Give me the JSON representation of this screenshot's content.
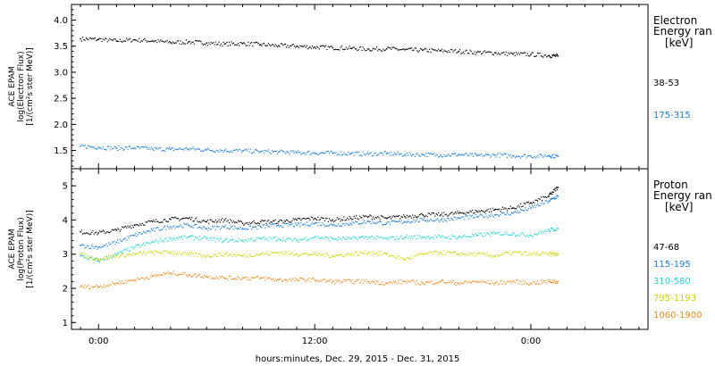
{
  "chart_data": [
    {
      "type": "scatter",
      "ylabel_lines": [
        "ACE EPAM",
        "log(Electron Flux)",
        "[1/(cm²s ster MeV)]"
      ],
      "legend_title": [
        "Electron",
        "Energy ran",
        "[keV]"
      ],
      "ylim": [
        1.15,
        4.3
      ],
      "yticks": [
        "1.5",
        "2.0",
        "2.5",
        "3.0",
        "3.5",
        "4.0"
      ],
      "series": [
        {
          "name": "38-53",
          "color": "#000000",
          "x": [
            -2,
            0,
            2,
            4,
            6,
            8,
            10,
            12,
            14,
            16,
            18,
            20,
            22,
            24,
            26,
            28,
            30,
            32,
            34,
            36,
            38,
            40,
            42,
            44,
            46,
            48,
            50,
            51
          ],
          "values": [
            3.64,
            3.63,
            3.6,
            3.62,
            3.6,
            3.57,
            3.58,
            3.56,
            3.54,
            3.55,
            3.53,
            3.51,
            3.5,
            3.48,
            3.47,
            3.46,
            3.44,
            3.45,
            3.43,
            3.42,
            3.41,
            3.4,
            3.38,
            3.37,
            3.35,
            3.34,
            3.32,
            3.31
          ]
        },
        {
          "name": "175-315",
          "color": "#1f7fd6",
          "x": [
            -2,
            0,
            2,
            4,
            6,
            8,
            10,
            12,
            14,
            16,
            18,
            20,
            22,
            24,
            26,
            28,
            30,
            32,
            34,
            36,
            38,
            40,
            42,
            44,
            46,
            48,
            50,
            51
          ],
          "values": [
            1.58,
            1.56,
            1.54,
            1.55,
            1.53,
            1.52,
            1.53,
            1.51,
            1.5,
            1.49,
            1.48,
            1.47,
            1.46,
            1.45,
            1.45,
            1.44,
            1.43,
            1.44,
            1.42,
            1.42,
            1.41,
            1.42,
            1.4,
            1.41,
            1.4,
            1.39,
            1.4,
            1.39
          ]
        }
      ]
    },
    {
      "type": "scatter",
      "ylabel_lines": [
        "ACE EPAM",
        "log(Proton Flux)",
        "[1/(cm²s ster MeV)]"
      ],
      "legend_title": [
        "Proton",
        "Energy ran",
        "[keV]"
      ],
      "ylim": [
        0.8,
        5.5
      ],
      "yticks": [
        "1",
        "2",
        "3",
        "4",
        "5"
      ],
      "series": [
        {
          "name": "47-68",
          "color": "#000000",
          "x": [
            -2,
            0,
            2,
            4,
            6,
            8,
            10,
            12,
            14,
            16,
            18,
            20,
            22,
            24,
            26,
            28,
            30,
            32,
            34,
            36,
            38,
            40,
            42,
            44,
            46,
            48,
            50,
            51
          ],
          "values": [
            3.65,
            3.62,
            3.7,
            3.85,
            3.95,
            4.02,
            4.05,
            3.95,
            4.0,
            3.9,
            3.95,
            3.95,
            4.0,
            4.05,
            4.0,
            4.05,
            4.1,
            4.05,
            4.1,
            4.15,
            4.15,
            4.2,
            4.25,
            4.3,
            4.35,
            4.5,
            4.7,
            4.95
          ]
        },
        {
          "name": "115-195",
          "color": "#1f7fd6",
          "x": [
            -2,
            0,
            2,
            4,
            6,
            8,
            10,
            12,
            14,
            16,
            18,
            20,
            22,
            24,
            26,
            28,
            30,
            32,
            34,
            36,
            38,
            40,
            42,
            44,
            46,
            48,
            50,
            51
          ],
          "values": [
            3.25,
            3.2,
            3.35,
            3.55,
            3.7,
            3.8,
            3.85,
            3.75,
            3.8,
            3.75,
            3.8,
            3.85,
            3.85,
            3.9,
            3.85,
            3.9,
            3.95,
            3.9,
            3.95,
            4.0,
            4.0,
            4.05,
            4.1,
            4.15,
            4.2,
            4.35,
            4.55,
            4.7
          ]
        },
        {
          "name": "310-580",
          "color": "#22d3d3",
          "x": [
            -2,
            0,
            2,
            4,
            6,
            8,
            10,
            12,
            14,
            16,
            18,
            20,
            22,
            24,
            26,
            28,
            30,
            32,
            34,
            36,
            38,
            40,
            42,
            44,
            46,
            48,
            50,
            51
          ],
          "values": [
            2.95,
            2.8,
            3.0,
            3.2,
            3.35,
            3.45,
            3.5,
            3.45,
            3.4,
            3.4,
            3.45,
            3.45,
            3.4,
            3.5,
            3.45,
            3.45,
            3.5,
            3.45,
            3.5,
            3.5,
            3.5,
            3.5,
            3.55,
            3.6,
            3.6,
            3.55,
            3.7,
            3.75
          ]
        },
        {
          "name": "795-1193",
          "color": "#c8d400",
          "x": [
            -2,
            0,
            2,
            4,
            6,
            8,
            10,
            12,
            14,
            16,
            18,
            20,
            22,
            24,
            26,
            28,
            30,
            32,
            34,
            36,
            38,
            40,
            42,
            44,
            46,
            48,
            50,
            51
          ],
          "values": [
            3.0,
            2.85,
            2.95,
            3.0,
            3.05,
            3.05,
            3.0,
            2.95,
            3.0,
            2.95,
            3.0,
            3.05,
            3.0,
            3.0,
            2.95,
            3.0,
            3.05,
            3.0,
            2.85,
            3.0,
            3.05,
            3.0,
            3.0,
            2.95,
            3.05,
            3.0,
            3.0,
            3.0
          ]
        },
        {
          "name": "1060-1900",
          "color": "#f08a1e",
          "x": [
            -2,
            0,
            2,
            4,
            6,
            8,
            10,
            12,
            14,
            16,
            18,
            20,
            22,
            24,
            26,
            28,
            30,
            32,
            34,
            36,
            38,
            40,
            42,
            44,
            46,
            48,
            50,
            51
          ],
          "values": [
            2.05,
            2.05,
            2.15,
            2.25,
            2.35,
            2.45,
            2.4,
            2.35,
            2.3,
            2.3,
            2.3,
            2.25,
            2.25,
            2.25,
            2.2,
            2.2,
            2.2,
            2.15,
            2.2,
            2.15,
            2.2,
            2.15,
            2.2,
            2.15,
            2.2,
            2.15,
            2.2,
            2.2
          ]
        }
      ]
    }
  ],
  "xaxis": {
    "xlim": [
      -3,
      61
    ],
    "ticks": [
      {
        "x": 0,
        "label": "0:00"
      },
      {
        "x": 24,
        "label": "12:00"
      },
      {
        "x": 48,
        "label": "0:00"
      }
    ],
    "title": "hours:minutes, Dec. 29, 2015 - Dec. 31, 2015"
  }
}
